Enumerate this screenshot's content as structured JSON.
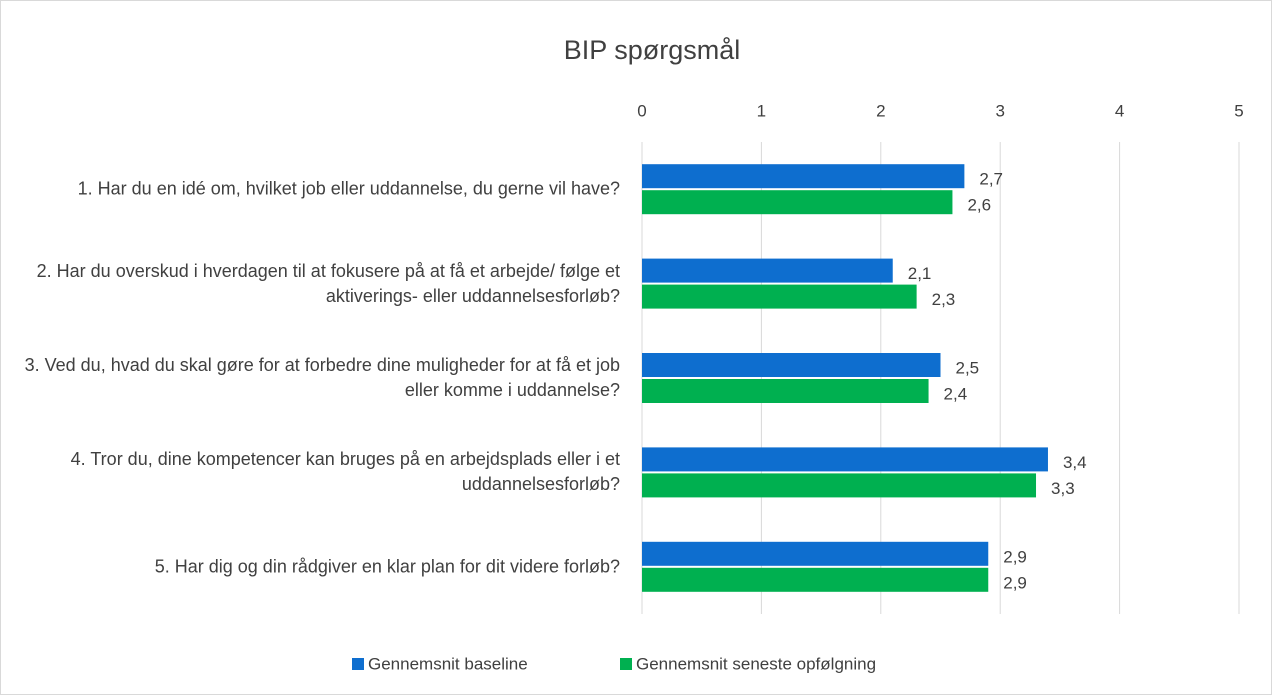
{
  "chart_data": {
    "type": "hbar",
    "title": "BIP spørgsmål",
    "categories": [
      "1. Har du en idé om, hvilket job eller uddannelse, du gerne vil have?",
      "2. Har du overskud i hverdagen til at fokusere på at få et arbejde/ følge et aktiverings- eller uddannelsesforløb?",
      "3. Ved du, hvad du skal gøre for at forbedre dine muligheder for at få et job eller komme i uddannelse?",
      "4. Tror du, dine kompetencer kan bruges på en arbejdsplads eller i et uddannelsesforløb?",
      "5. Har dig og din rådgiver en klar plan for dit videre forløb?"
    ],
    "series": [
      {
        "name": "Gennemsnit baseline",
        "color": "#0e6ecf",
        "values": [
          2.7,
          2.1,
          2.5,
          3.4,
          2.9
        ],
        "value_labels": [
          "2,7",
          "2,1",
          "2,5",
          "3,4",
          "2,9"
        ]
      },
      {
        "name": "Gennemsnit seneste opfølgning",
        "color": "#00b050",
        "values": [
          2.6,
          2.3,
          2.4,
          3.3,
          2.9
        ],
        "value_labels": [
          "2,6",
          "2,3",
          "2,4",
          "3,3",
          "2,9"
        ]
      }
    ],
    "xlim": [
      0,
      5
    ],
    "xticks": [
      0,
      1,
      2,
      3,
      4,
      5
    ],
    "grid": true,
    "legend": "bottom"
  }
}
